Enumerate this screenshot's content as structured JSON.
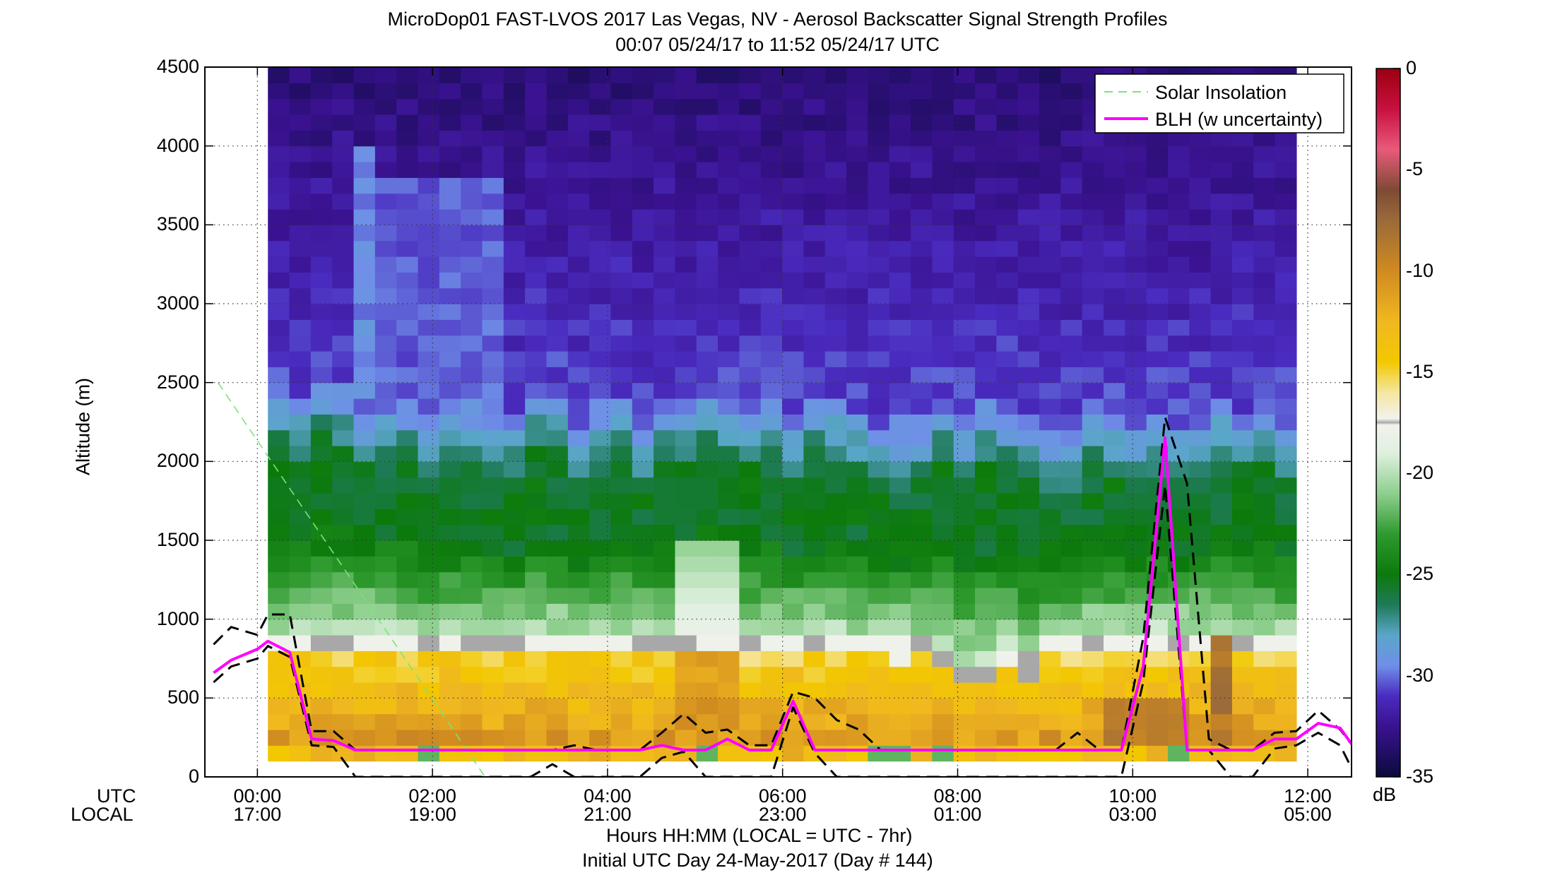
{
  "chart_data": {
    "type": "heatmap",
    "title": "MicroDop01 FAST-LVOS 2017 Las Vegas, NV - Aerosol Backscatter Signal Strength Profiles",
    "subtitle": "00:07 05/24/17 to 11:52 05/24/17  UTC",
    "xlabel": "Hours HH:MM  (LOCAL = UTC - 7hr)",
    "xlabel2": "Initial UTC Day 24-May-2017 (Day # 144)",
    "ylabel": "Altitude (m)",
    "x_row_labels": [
      "UTC",
      "LOCAL"
    ],
    "xlim_hours_utc": [
      -0.6,
      12.5
    ],
    "ylim": [
      0,
      4500
    ],
    "grid": "dotted",
    "x_ticks": [
      {
        "utc_hours": 0,
        "utc": "00:00",
        "local": "17:00"
      },
      {
        "utc_hours": 2,
        "utc": "02:00",
        "local": "19:00"
      },
      {
        "utc_hours": 4,
        "utc": "04:00",
        "local": "21:00"
      },
      {
        "utc_hours": 6,
        "utc": "06:00",
        "local": "23:00"
      },
      {
        "utc_hours": 8,
        "utc": "08:00",
        "local": "01:00"
      },
      {
        "utc_hours": 10,
        "utc": "10:00",
        "local": "03:00"
      },
      {
        "utc_hours": 12,
        "utc": "12:00",
        "local": "05:00"
      }
    ],
    "y_ticks": [
      0,
      500,
      1000,
      1500,
      2000,
      2500,
      3000,
      3500,
      4000,
      4500
    ],
    "colorbar": {
      "label": "dB",
      "range": [
        -35,
        0
      ],
      "ticks": [
        0,
        -5,
        -10,
        -15,
        -20,
        -25,
        -30,
        -35
      ],
      "stops": [
        {
          "v": -35,
          "c": "#0b0a3d"
        },
        {
          "v": -32.5,
          "c": "#3a1290"
        },
        {
          "v": -31,
          "c": "#4a2cc0"
        },
        {
          "v": -29.5,
          "c": "#6f8fe8"
        },
        {
          "v": -28,
          "c": "#5aa6c9"
        },
        {
          "v": -26.5,
          "c": "#1f7a58"
        },
        {
          "v": -25,
          "c": "#0b7a0b"
        },
        {
          "v": -23,
          "c": "#2f9a2f"
        },
        {
          "v": -21,
          "c": "#8ecf8e"
        },
        {
          "v": -19,
          "c": "#dff0df"
        },
        {
          "v": -17.6,
          "c": "#f2f2ec"
        },
        {
          "v": -17.5,
          "c": "#a8a8a8"
        },
        {
          "v": -17.3,
          "c": "#f2f2ec"
        },
        {
          "v": -16,
          "c": "#f5e6a0"
        },
        {
          "v": -14.5,
          "c": "#f2c800"
        },
        {
          "v": -12.5,
          "c": "#f0b820"
        },
        {
          "v": -10,
          "c": "#d08a20"
        },
        {
          "v": -7.5,
          "c": "#9a6a3a"
        },
        {
          "v": -6,
          "c": "#7e4a34"
        },
        {
          "v": -4,
          "c": "#e85a7a"
        },
        {
          "v": -2,
          "c": "#c81040"
        },
        {
          "v": 0,
          "c": "#9a0010"
        }
      ]
    },
    "heatmap": {
      "x_start_hours": 0.12,
      "x_end_hours": 11.87,
      "n_columns": 48,
      "bin_height_m": 100,
      "data_bottom_m": 100,
      "data_top_m": 4500,
      "units": "dB"
    },
    "series": [
      {
        "name": "Solar Insolation",
        "color": "#7be37b",
        "style": "dashed",
        "x": [
          -0.45,
          2.6
        ],
        "y": [
          2500,
          0
        ]
      },
      {
        "name": "BLH (w uncertainty)",
        "color": "#ff00ff",
        "style": "solid",
        "x": [
          -0.5,
          -0.3,
          0,
          0.12,
          0.37,
          0.62,
          0.87,
          1.12,
          1.37,
          1.62,
          1.87,
          2.12,
          2.37,
          2.62,
          2.87,
          3.12,
          3.37,
          3.62,
          3.87,
          4.12,
          4.37,
          4.62,
          4.87,
          5.12,
          5.37,
          5.62,
          5.87,
          6.12,
          6.37,
          6.62,
          6.87,
          7.12,
          7.37,
          7.62,
          7.87,
          8.12,
          8.37,
          8.62,
          8.87,
          9.12,
          9.37,
          9.62,
          9.87,
          10.12,
          10.37,
          10.62,
          10.87,
          11.12,
          11.37,
          11.62,
          11.87,
          12.12,
          12.37,
          12.55
        ],
        "y": [
          660,
          740,
          810,
          860,
          790,
          240,
          230,
          170,
          170,
          170,
          170,
          170,
          170,
          170,
          170,
          170,
          170,
          170,
          170,
          170,
          170,
          200,
          170,
          170,
          240,
          170,
          170,
          480,
          170,
          170,
          170,
          170,
          170,
          170,
          170,
          170,
          170,
          170,
          170,
          170,
          170,
          170,
          170,
          700,
          2150,
          170,
          170,
          170,
          170,
          240,
          240,
          340,
          310,
          170
        ]
      },
      {
        "name": "",
        "color": "#000000",
        "style": "dashed",
        "x": [
          -0.5,
          -0.3,
          0,
          0.12,
          0.37,
          0.62,
          0.87,
          1.12,
          1.37,
          1.62,
          1.87,
          2.12,
          2.37,
          2.62,
          2.87,
          3.12,
          3.37,
          3.62,
          3.87,
          4.12,
          4.37,
          4.62,
          4.87,
          5.12,
          5.37,
          5.62,
          5.87,
          6.12,
          6.37,
          6.62,
          6.87,
          7.12,
          7.37,
          7.62,
          7.87,
          8.12,
          8.37,
          8.62,
          8.87,
          9.12,
          9.37,
          9.62,
          9.87,
          10.12,
          10.37,
          10.62,
          10.87,
          11.12,
          11.37,
          11.62,
          11.87,
          12.12,
          12.37,
          12.55
        ],
        "y": [
          840,
          950,
          900,
          1030,
          1030,
          290,
          290,
          170,
          170,
          170,
          170,
          170,
          170,
          170,
          170,
          170,
          170,
          200,
          170,
          170,
          170,
          280,
          400,
          280,
          300,
          200,
          200,
          540,
          500,
          360,
          300,
          170,
          170,
          170,
          170,
          170,
          170,
          170,
          170,
          170,
          280,
          170,
          170,
          880,
          2280,
          1860,
          240,
          170,
          170,
          280,
          290,
          420,
          300,
          170
        ]
      },
      {
        "name": "",
        "color": "#000000",
        "style": "dashed",
        "x": [
          -0.5,
          -0.3,
          0,
          0.12,
          0.37,
          0.62,
          0.87,
          1.12,
          1.37,
          1.62,
          1.87,
          2.12,
          2.37,
          2.62,
          2.87,
          3.12,
          3.37,
          3.62,
          3.87,
          4.12,
          4.37,
          4.62,
          4.87,
          5.12,
          5.37,
          5.62,
          5.87,
          6.12,
          6.37,
          6.62,
          6.87,
          7.12,
          7.37,
          7.62,
          7.87,
          8.12,
          8.37,
          8.62,
          8.87,
          9.12,
          9.37,
          9.62,
          9.87,
          10.12,
          10.37,
          10.62,
          10.87,
          11.12,
          11.37,
          11.62,
          11.87,
          12.12,
          12.37,
          12.55
        ],
        "y": [
          600,
          700,
          750,
          830,
          760,
          200,
          190,
          0,
          0,
          0,
          0,
          0,
          0,
          0,
          0,
          0,
          80,
          0,
          0,
          0,
          0,
          120,
          160,
          0,
          0,
          0,
          0,
          440,
          150,
          0,
          0,
          0,
          0,
          0,
          0,
          0,
          0,
          0,
          0,
          0,
          0,
          0,
          0,
          600,
          1850,
          170,
          170,
          0,
          0,
          180,
          200,
          280,
          200,
          0
        ]
      }
    ],
    "legend": {
      "placement": "top-right",
      "entries": [
        "Solar Insolation",
        "BLH (w uncertainty)"
      ]
    }
  }
}
